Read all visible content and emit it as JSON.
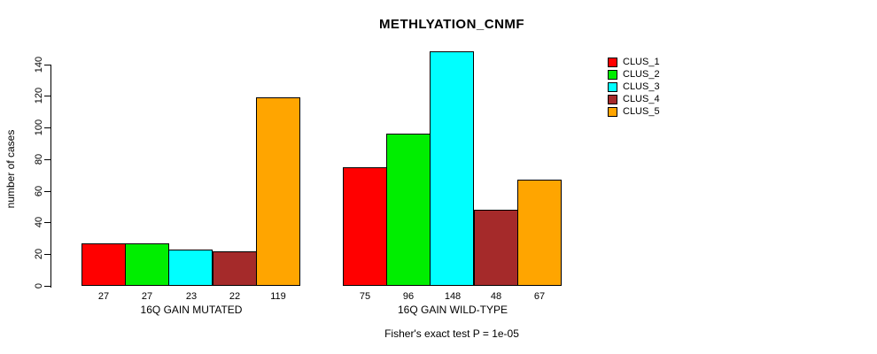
{
  "chart_data": {
    "type": "bar",
    "title": "METHLYATION_CNMF",
    "ylabel": "number of cases",
    "xlabel": "",
    "ylim": [
      0,
      140
    ],
    "yticks": [
      0,
      20,
      40,
      60,
      80,
      100,
      120,
      140
    ],
    "grid": false,
    "legend_position": "right",
    "categories": [
      "16Q GAIN MUTATED",
      "16Q GAIN WILD-TYPE"
    ],
    "series": [
      {
        "name": "CLUS_1",
        "color": "#FF0000",
        "values": [
          27,
          75
        ]
      },
      {
        "name": "CLUS_2",
        "color": "#00EE00",
        "values": [
          27,
          96
        ]
      },
      {
        "name": "CLUS_3",
        "color": "#00FFFF",
        "values": [
          23,
          148
        ]
      },
      {
        "name": "CLUS_4",
        "color": "#A52A2A",
        "values": [
          22,
          48
        ]
      },
      {
        "name": "CLUS_5",
        "color": "#FFA500",
        "values": [
          119,
          67
        ]
      }
    ],
    "bar_value_labels": [
      [
        27,
        27,
        23,
        22,
        119
      ],
      [
        75,
        96,
        148,
        48,
        67
      ]
    ],
    "note": "Fisher's exact test P = 1e-05"
  }
}
